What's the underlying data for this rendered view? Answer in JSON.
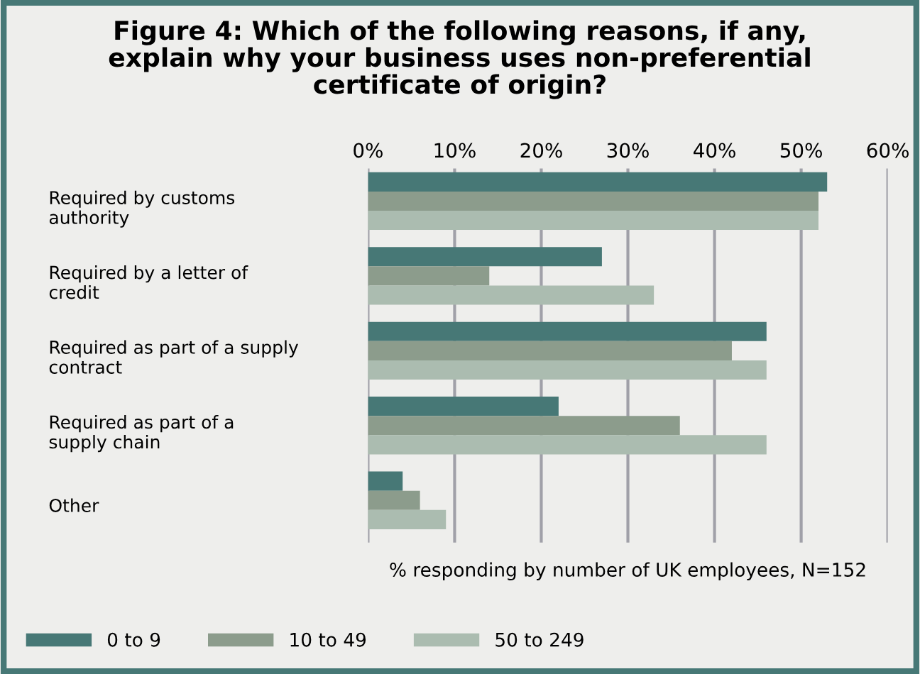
{
  "chart_data": {
    "type": "bar",
    "orientation": "horizontal",
    "title": "Figure 4: Which of the following reasons, if any,\nexplain why your business uses non-preferential\ncertificate of origin?",
    "categories": [
      "Required by customs\nauthority",
      "Required by a letter of\ncredit",
      "Required as part of a supply\ncontract",
      "Required as part of a\nsupply chain",
      "Other"
    ],
    "series": [
      {
        "name": "0 to 9",
        "color": "#477876",
        "values": [
          53,
          27,
          46,
          22,
          4
        ]
      },
      {
        "name": "10 to 49",
        "color": "#8c9c8c",
        "values": [
          52,
          14,
          42,
          36,
          6
        ]
      },
      {
        "name": "50 to 249",
        "color": "#abbcb0",
        "values": [
          52,
          33,
          46,
          46,
          9
        ]
      }
    ],
    "xlim": [
      0,
      60
    ],
    "xticks": [
      {
        "value": 0,
        "label": "0%"
      },
      {
        "value": 10,
        "label": "10%"
      },
      {
        "value": 20,
        "label": "20%"
      },
      {
        "value": 30,
        "label": "30%"
      },
      {
        "value": 40,
        "label": "40%"
      },
      {
        "value": 50,
        "label": "50%"
      },
      {
        "value": 60,
        "label": "60%"
      }
    ],
    "xlabel": "% responding by number of UK employees, N=152",
    "grid": "x",
    "legend": "bottom"
  }
}
